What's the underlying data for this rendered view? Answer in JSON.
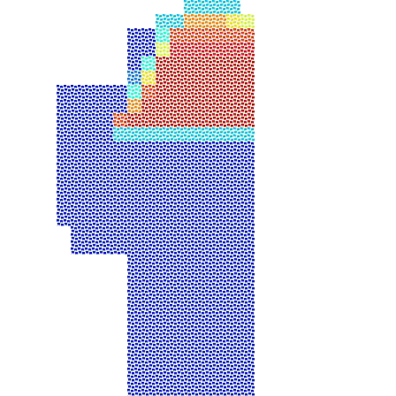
{
  "chart_data": {
    "type": "heatmap",
    "tick_labels": false,
    "zlim": [
      0,
      1
    ],
    "cells": [
      [
        null,
        null,
        null,
        null,
        null,
        null,
        null,
        null,
        null,
        0.2,
        0.2,
        0.2,
        0.2,
        null,
        null
      ],
      [
        null,
        null,
        null,
        null,
        null,
        null,
        null,
        0.2,
        0.2,
        0.7,
        0.7,
        0.7,
        0.6,
        0.5,
        null
      ],
      [
        null,
        null,
        null,
        null,
        null,
        0,
        0,
        0.3,
        0.8,
        0.8,
        0.8,
        0.8,
        0.8,
        0.8,
        null
      ],
      [
        null,
        null,
        null,
        null,
        null,
        0,
        0,
        0.5,
        0.85,
        0.85,
        0.85,
        0.85,
        0.85,
        0.85,
        null
      ],
      [
        null,
        null,
        null,
        null,
        null,
        0,
        0.3,
        0.9,
        0.9,
        0.9,
        0.9,
        0.9,
        0.9,
        0.9,
        null
      ],
      [
        null,
        null,
        null,
        null,
        null,
        0.1,
        0.6,
        0.9,
        0.9,
        0.9,
        0.9,
        0.9,
        0.9,
        0.9,
        null
      ],
      [
        0,
        0,
        0,
        0,
        0,
        0.3,
        0.8,
        0.9,
        0.9,
        0.9,
        0.9,
        0.9,
        0.9,
        0.9,
        null
      ],
      [
        0,
        0,
        0,
        0,
        0,
        0.7,
        0.9,
        0.9,
        0.9,
        0.9,
        0.9,
        0.9,
        0.9,
        0.9,
        null
      ],
      [
        0,
        0,
        0,
        0,
        0.8,
        0.9,
        0.9,
        0.9,
        0.9,
        0.9,
        0.9,
        0.9,
        0.9,
        0.9,
        null
      ],
      [
        0,
        0,
        0,
        0,
        0.2,
        0.2,
        0.2,
        0.2,
        0.2,
        0.2,
        0.2,
        0.2,
        0.2,
        0.2,
        null
      ],
      [
        0,
        0,
        0,
        0,
        0,
        0,
        0,
        0,
        0,
        0,
        0,
        0,
        0,
        0,
        null
      ],
      [
        0,
        0,
        0,
        0,
        0,
        0,
        0,
        0,
        0,
        0,
        0,
        0,
        0,
        0,
        null
      ],
      [
        0,
        0,
        0,
        0,
        0,
        0,
        0,
        0,
        0,
        0,
        0,
        0,
        0,
        0,
        null
      ],
      [
        0,
        0,
        0,
        0,
        0,
        0,
        0,
        0,
        0,
        0,
        0,
        0,
        0,
        0,
        null
      ],
      [
        0,
        0,
        0,
        0,
        0,
        0,
        0,
        0,
        0,
        0,
        0,
        0,
        0,
        0,
        null
      ],
      [
        0,
        0,
        0,
        0,
        0,
        0,
        0,
        0,
        0,
        0,
        0,
        0,
        0,
        0,
        null
      ],
      [
        null,
        0,
        0,
        0,
        0,
        0,
        0,
        0,
        0,
        0,
        0,
        0,
        0,
        0,
        null
      ],
      [
        null,
        0,
        0,
        0,
        0,
        0,
        0,
        0,
        0,
        0,
        0,
        0,
        0,
        0,
        null
      ],
      [
        null,
        null,
        null,
        null,
        null,
        0,
        0,
        0,
        0,
        0,
        0,
        0,
        0,
        0,
        null
      ],
      [
        null,
        null,
        null,
        null,
        null,
        0,
        0,
        0,
        0,
        0,
        0,
        0,
        0,
        0,
        null
      ],
      [
        null,
        null,
        null,
        null,
        null,
        0,
        0,
        0,
        0,
        0,
        0,
        0,
        0,
        0,
        null
      ],
      [
        null,
        null,
        null,
        null,
        null,
        0,
        0,
        0,
        0,
        0,
        0,
        0,
        0,
        0,
        null
      ],
      [
        null,
        null,
        null,
        null,
        null,
        0,
        0,
        0,
        0,
        0,
        0,
        0,
        0,
        0,
        null
      ],
      [
        null,
        null,
        null,
        null,
        null,
        0,
        0,
        0,
        0,
        0,
        0,
        0,
        0,
        0,
        null
      ],
      [
        null,
        null,
        null,
        null,
        null,
        0,
        0,
        0,
        0,
        0,
        0,
        0,
        0,
        0,
        null
      ],
      [
        null,
        null,
        null,
        null,
        null,
        0,
        0,
        0,
        0,
        0,
        0,
        0,
        0,
        0,
        null
      ],
      [
        null,
        null,
        null,
        null,
        null,
        0,
        0,
        0,
        0,
        0,
        0,
        0,
        0,
        0,
        null
      ],
      [
        null,
        null,
        null,
        null,
        null,
        0,
        0,
        0,
        0,
        0,
        0,
        0,
        0,
        0,
        null
      ]
    ]
  }
}
